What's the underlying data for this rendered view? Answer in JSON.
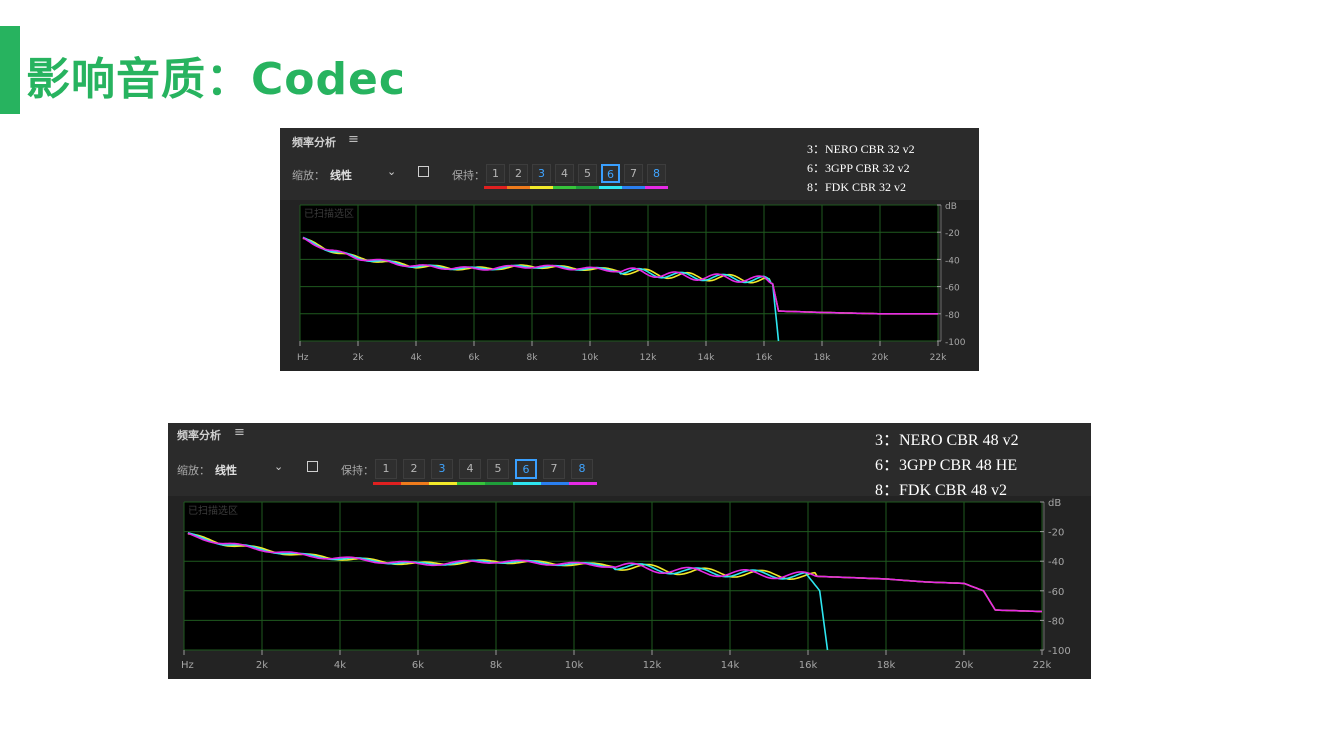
{
  "slide": {
    "title": "影响音质：Codec",
    "accent": "#27b35f"
  },
  "panels": [
    {
      "panel_title": "频率分析",
      "zoom_label": "缩放：",
      "zoom_value": "线性",
      "hold_label": "保持：",
      "scanned_area_label": "已扫描选区",
      "hold_buttons": [
        "1",
        "2",
        "3",
        "4",
        "5",
        "6",
        "7",
        "8"
      ],
      "hold_colors": [
        "#e02020",
        "#ef7b1c",
        "#f2ea2a",
        "#36c43b",
        "#1f9e3a",
        "#2ee6f0",
        "#2a7ff0",
        "#e62ae6"
      ],
      "legend": [
        "3：NERO CBR 32 v2",
        "6：3GPP CBR 32 v2",
        "8：FDK CBR 32 v2"
      ]
    },
    {
      "panel_title": "频率分析",
      "zoom_label": "缩放：",
      "zoom_value": "线性",
      "hold_label": "保持：",
      "scanned_area_label": "已扫描选区",
      "hold_buttons": [
        "1",
        "2",
        "3",
        "4",
        "5",
        "6",
        "7",
        "8"
      ],
      "hold_colors": [
        "#e02020",
        "#ef7b1c",
        "#f2ea2a",
        "#36c43b",
        "#1f9e3a",
        "#2ee6f0",
        "#2a7ff0",
        "#e62ae6"
      ],
      "legend": [
        "3：NERO CBR 48 v2",
        "6：3GPP CBR 48 HE",
        "8：FDK CBR 48 v2"
      ]
    }
  ],
  "chart_data": [
    {
      "type": "line",
      "xlabel": "Hz",
      "ylabel": "dB",
      "x_ticks": [
        "Hz",
        "2k",
        "4k",
        "6k",
        "8k",
        "10k",
        "12k",
        "14k",
        "16k",
        "18k",
        "20k",
        "22k"
      ],
      "y_ticks": [
        "dB",
        "-20",
        "-40",
        "-60",
        "-80",
        "-100"
      ],
      "xlim": [
        0,
        22000
      ],
      "ylim": [
        0,
        -100
      ],
      "grid": true,
      "series": [
        {
          "name": "3",
          "color": "#f2ea2a",
          "x": [
            100,
            1000,
            2000,
            3000,
            4000,
            5000,
            6000,
            7000,
            8000,
            9000,
            10000,
            11000,
            12000,
            13000,
            14000,
            15000,
            16000,
            16300,
            16500,
            18000,
            20000,
            22000
          ],
          "y": [
            -25,
            -33,
            -39,
            -42,
            -45,
            -46,
            -47,
            -46,
            -45,
            -46,
            -47,
            -48,
            -50,
            -52,
            -53,
            -54,
            -55,
            -58,
            -78,
            -79,
            -80,
            -80
          ]
        },
        {
          "name": "6",
          "color": "#2ee6f0",
          "x": [
            100,
            1000,
            2000,
            3000,
            4000,
            5000,
            6000,
            7000,
            8000,
            9000,
            10000,
            11000,
            12000,
            13000,
            14000,
            15000,
            16000,
            16300,
            16500
          ],
          "y": [
            -25,
            -33,
            -39,
            -42,
            -45,
            -46,
            -47,
            -46,
            -45,
            -46,
            -47,
            -48,
            -50,
            -52,
            -53,
            -54,
            -55,
            -58,
            -100
          ]
        },
        {
          "name": "8",
          "color": "#e62ae6",
          "x": [
            100,
            1000,
            2000,
            3000,
            4000,
            5000,
            6000,
            7000,
            8000,
            9000,
            10000,
            11000,
            12000,
            13000,
            14000,
            15000,
            16000,
            16300,
            16500,
            18000,
            20000,
            22000
          ],
          "y": [
            -25,
            -33,
            -39,
            -42,
            -45,
            -46,
            -47,
            -46,
            -45,
            -46,
            -47,
            -48,
            -50,
            -52,
            -53,
            -54,
            -55,
            -58,
            -78,
            -79,
            -80,
            -80
          ]
        }
      ]
    },
    {
      "type": "line",
      "xlabel": "Hz",
      "ylabel": "dB",
      "x_ticks": [
        "Hz",
        "2k",
        "4k",
        "6k",
        "8k",
        "10k",
        "12k",
        "14k",
        "16k",
        "18k",
        "20k",
        "22k"
      ],
      "y_ticks": [
        "dB",
        "-20",
        "-40",
        "-60",
        "-80",
        "-100"
      ],
      "xlim": [
        0,
        22000
      ],
      "ylim": [
        0,
        -100
      ],
      "grid": true,
      "series": [
        {
          "name": "3",
          "color": "#f2ea2a",
          "x": [
            100,
            1000,
            2000,
            3000,
            4000,
            5000,
            6000,
            7000,
            8000,
            9000,
            10000,
            11000,
            12000,
            13000,
            14000,
            15000,
            16000,
            17000,
            18000,
            19000,
            20000,
            20500,
            20800,
            22000
          ],
          "y": [
            -22,
            -28,
            -32,
            -36,
            -38,
            -40,
            -42,
            -41,
            -40,
            -41,
            -42,
            -43,
            -45,
            -47,
            -48,
            -49,
            -50,
            -51,
            -52,
            -54,
            -55,
            -60,
            -73,
            -74
          ]
        },
        {
          "name": "6",
          "color": "#2ee6f0",
          "x": [
            100,
            1000,
            2000,
            3000,
            4000,
            5000,
            6000,
            7000,
            8000,
            9000,
            10000,
            11000,
            12000,
            13000,
            14000,
            15000,
            16000,
            16300,
            16500
          ],
          "y": [
            -22,
            -28,
            -32,
            -36,
            -38,
            -40,
            -42,
            -41,
            -40,
            -41,
            -42,
            -43,
            -45,
            -47,
            -48,
            -49,
            -50,
            -60,
            -100
          ]
        },
        {
          "name": "8",
          "color": "#e62ae6",
          "x": [
            100,
            1000,
            2000,
            3000,
            4000,
            5000,
            6000,
            7000,
            8000,
            9000,
            10000,
            11000,
            12000,
            13000,
            14000,
            15000,
            16000,
            17000,
            18000,
            19000,
            20000,
            20500,
            20800,
            22000
          ],
          "y": [
            -22,
            -28,
            -32,
            -36,
            -38,
            -40,
            -42,
            -41,
            -40,
            -41,
            -42,
            -43,
            -45,
            -47,
            -48,
            -49,
            -50,
            -51,
            -52,
            -54,
            -55,
            -60,
            -73,
            -74
          ]
        }
      ]
    }
  ]
}
